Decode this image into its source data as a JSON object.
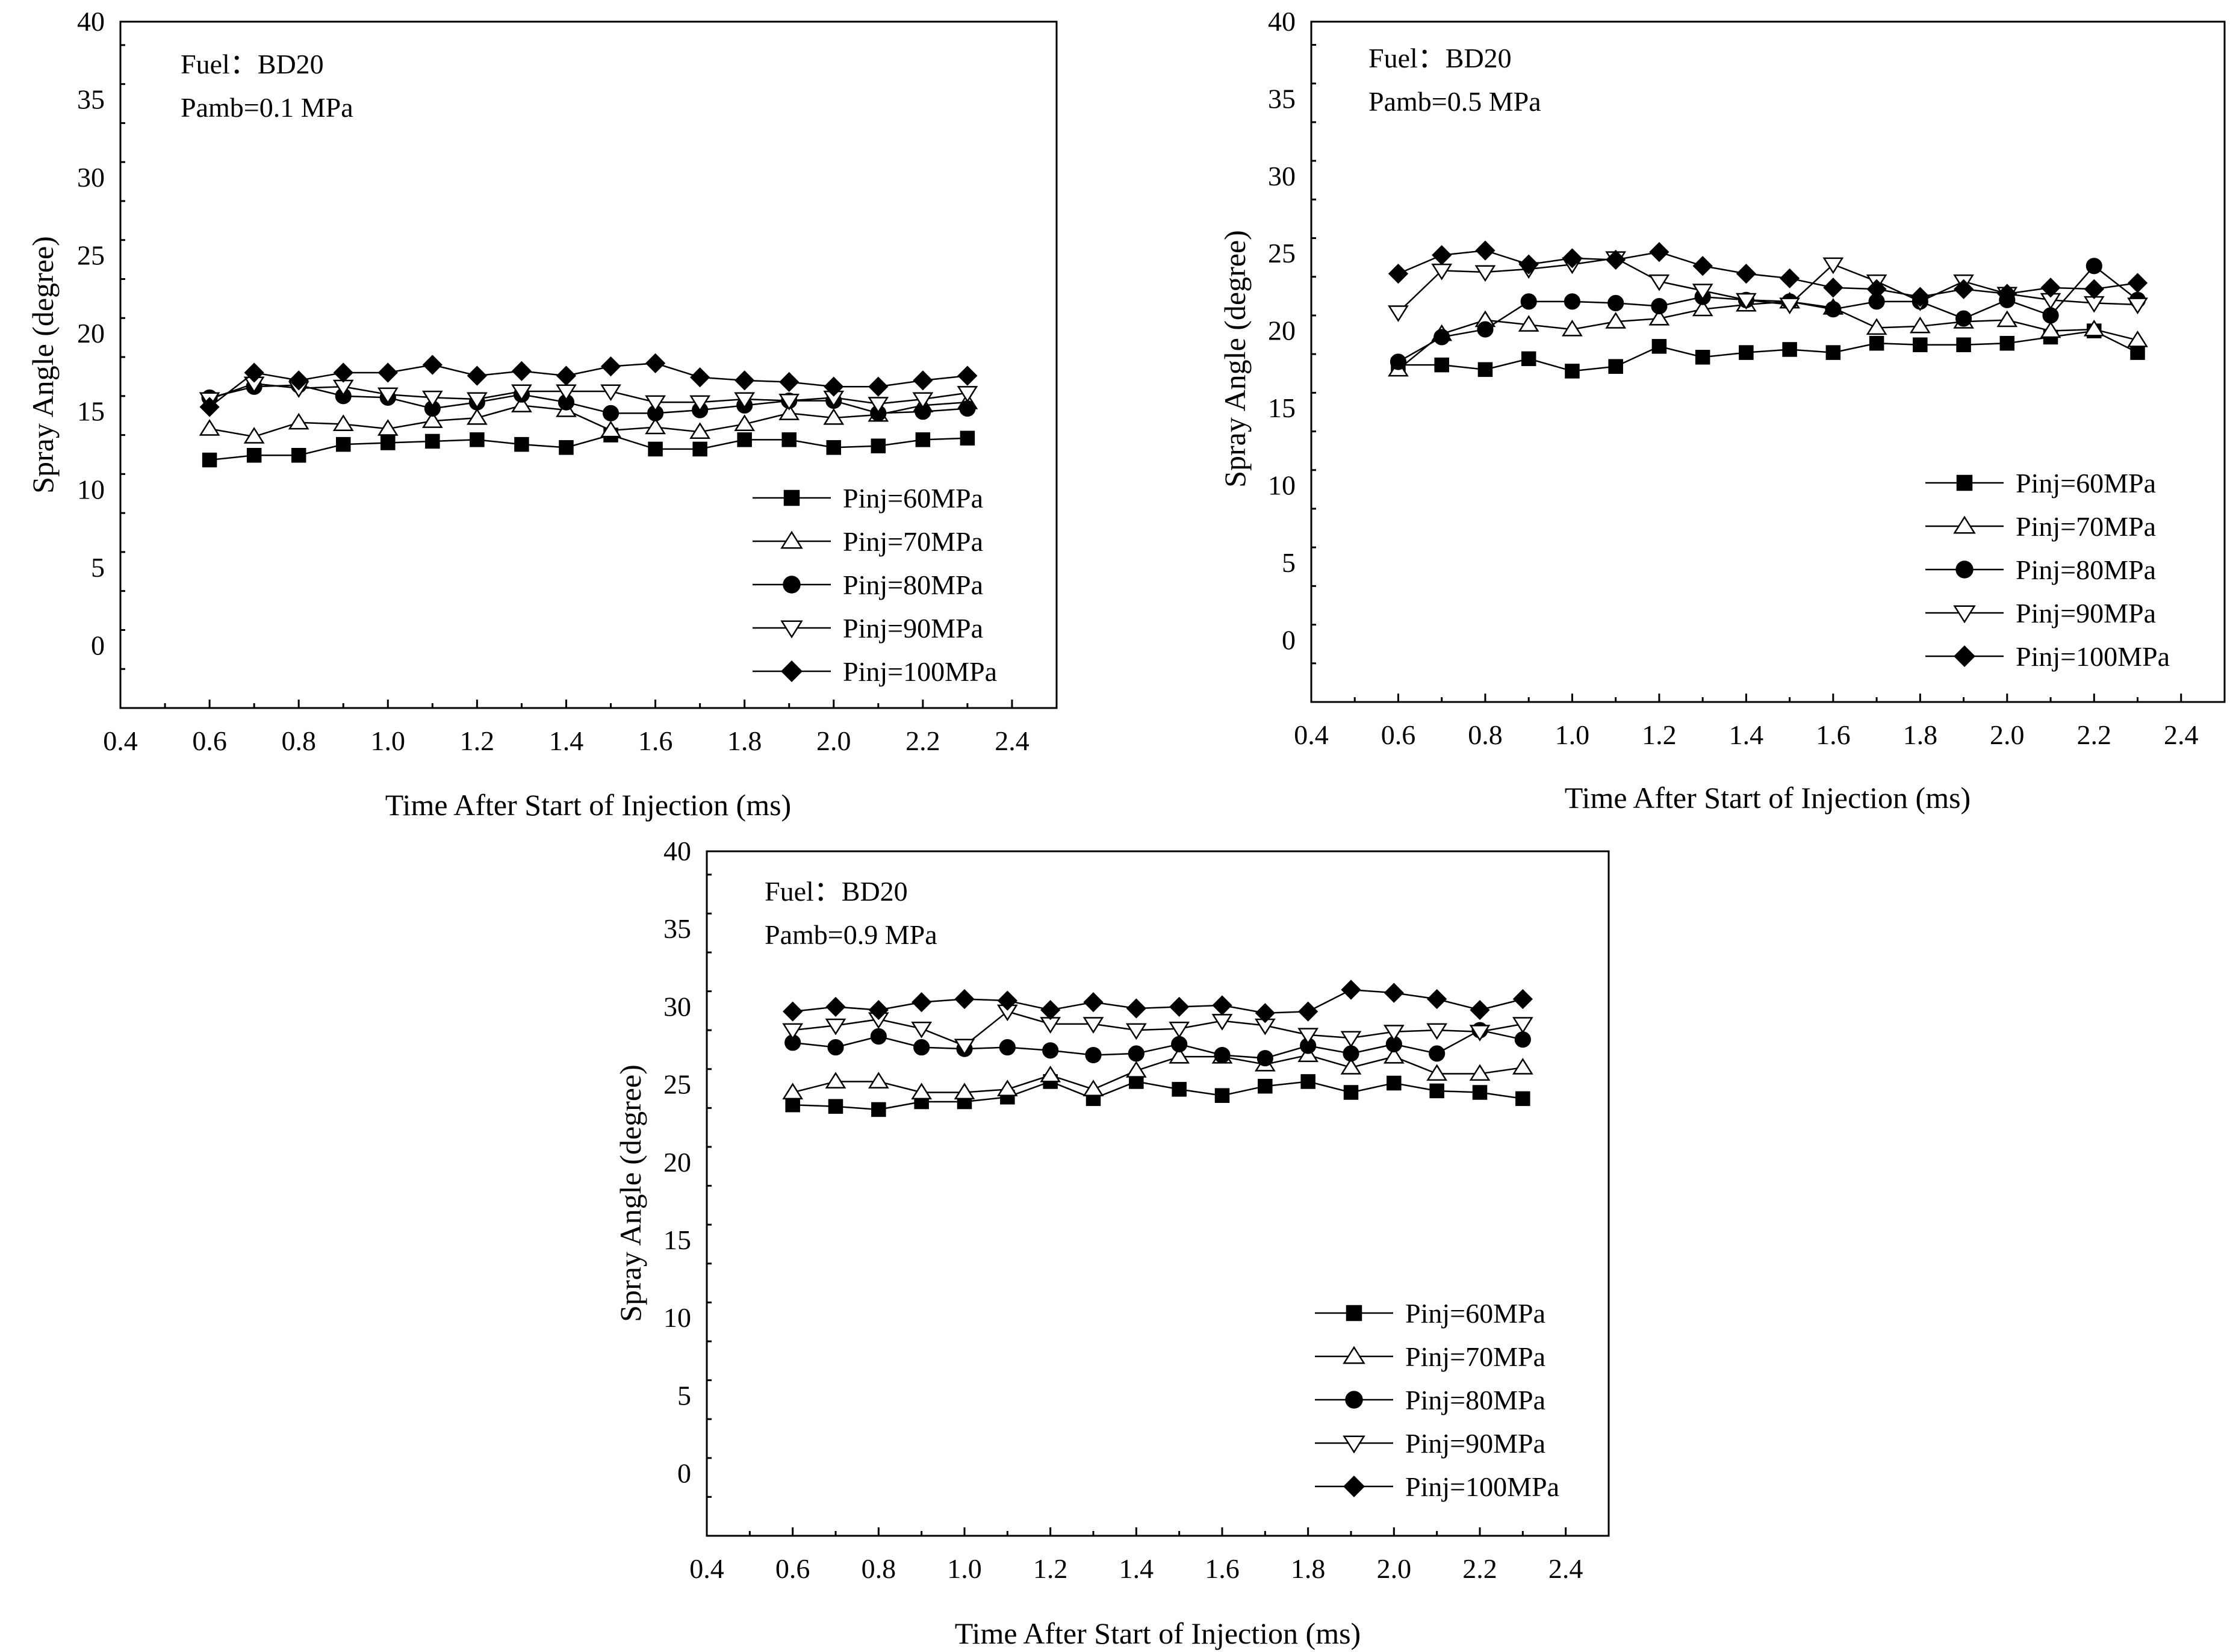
{
  "chart_data": [
    {
      "type": "line",
      "title": "",
      "annotation_lines": [
        "Fuel：BD20",
        "Pamb=0.1 MPa"
      ],
      "xlabel": "Time After Start of Injection (ms)",
      "ylabel": "Spray Angle (degree)",
      "xlim": [
        0.4,
        2.5
      ],
      "ylim": [
        -4,
        40
      ],
      "xticks": [
        "0.4",
        "0.6",
        "0.8",
        "1.0",
        "1.2",
        "1.4",
        "1.6",
        "1.8",
        "2.0",
        "2.2",
        "2.4"
      ],
      "yticks": [
        "0",
        "5",
        "10",
        "15",
        "20",
        "25",
        "30",
        "35",
        "40"
      ],
      "legend_position": "lower-right",
      "x": [
        0.6,
        0.7,
        0.8,
        0.9,
        1.0,
        1.1,
        1.2,
        1.3,
        1.4,
        1.5,
        1.6,
        1.7,
        1.8,
        1.9,
        2.0,
        2.1,
        2.2,
        2.3
      ],
      "series": [
        {
          "name": "Pinj=60MPa",
          "marker": "square",
          "values": [
            11.9,
            12.2,
            12.2,
            12.9,
            13.0,
            13.1,
            13.2,
            12.9,
            12.7,
            13.5,
            12.6,
            12.6,
            13.2,
            13.2,
            12.7,
            12.8,
            13.2,
            13.3
          ]
        },
        {
          "name": "Pinj=70MPa",
          "marker": "triangle-up-open",
          "values": [
            13.9,
            13.4,
            14.3,
            14.2,
            13.9,
            14.4,
            14.6,
            15.4,
            15.1,
            13.8,
            14.0,
            13.7,
            14.2,
            14.9,
            14.6,
            14.8,
            15.4,
            15.6
          ]
        },
        {
          "name": "Pinj=80MPa",
          "marker": "circle",
          "values": [
            15.9,
            16.6,
            16.7,
            16.0,
            15.9,
            15.2,
            15.6,
            16.1,
            15.6,
            14.9,
            14.9,
            15.1,
            15.4,
            15.7,
            15.7,
            14.9,
            15.0,
            15.2
          ]
        },
        {
          "name": "Pinj=90MPa",
          "marker": "triangle-down-open",
          "values": [
            15.8,
            16.8,
            16.5,
            16.6,
            16.1,
            15.9,
            15.8,
            16.3,
            16.3,
            16.3,
            15.6,
            15.6,
            15.8,
            15.7,
            15.9,
            15.5,
            15.8,
            16.2
          ]
        },
        {
          "name": "Pinj=100MPa",
          "marker": "diamond",
          "values": [
            15.3,
            17.5,
            17.0,
            17.5,
            17.5,
            18.0,
            17.3,
            17.6,
            17.3,
            17.9,
            18.1,
            17.2,
            17.0,
            16.9,
            16.6,
            16.6,
            17.0,
            17.3
          ]
        }
      ]
    },
    {
      "type": "line",
      "title": "",
      "annotation_lines": [
        "Fuel：BD20",
        "Pamb=0.5 MPa"
      ],
      "xlabel": "Time After Start of Injection (ms)",
      "ylabel": "Spray Angle (degree)",
      "xlim": [
        0.4,
        2.5
      ],
      "ylim": [
        -4,
        40
      ],
      "xticks": [
        "0.4",
        "0.6",
        "0.8",
        "1.0",
        "1.2",
        "1.4",
        "1.6",
        "1.8",
        "2.0",
        "2.2",
        "2.4"
      ],
      "yticks": [
        "0",
        "5",
        "10",
        "15",
        "20",
        "25",
        "30",
        "35",
        "40"
      ],
      "legend_position": "lower-right",
      "x": [
        0.6,
        0.7,
        0.8,
        0.9,
        1.0,
        1.1,
        1.2,
        1.3,
        1.4,
        1.5,
        1.6,
        1.7,
        1.8,
        1.9,
        2.0,
        2.1,
        2.2,
        2.3
      ],
      "series": [
        {
          "name": "Pinj=60MPa",
          "marker": "square",
          "values": [
            17.8,
            17.8,
            17.5,
            18.2,
            17.4,
            17.7,
            19.0,
            18.3,
            18.6,
            18.8,
            18.6,
            19.2,
            19.1,
            19.1,
            19.2,
            19.6,
            20.0,
            18.6
          ]
        },
        {
          "name": "Pinj=70MPa",
          "marker": "triangle-up-open",
          "values": [
            17.5,
            19.8,
            20.7,
            20.4,
            20.1,
            20.6,
            20.8,
            21.4,
            21.7,
            21.9,
            21.5,
            20.2,
            20.3,
            20.6,
            20.7,
            20.0,
            20.1,
            19.4
          ]
        },
        {
          "name": "Pinj=80MPa",
          "marker": "circle",
          "values": [
            18.0,
            19.6,
            20.1,
            21.9,
            21.9,
            21.8,
            21.6,
            22.2,
            22.0,
            21.9,
            21.4,
            21.9,
            21.9,
            20.8,
            22.0,
            21.0,
            24.2,
            22.0
          ]
        },
        {
          "name": "Pinj=90MPa",
          "marker": "triangle-down-open",
          "values": [
            21.2,
            23.9,
            23.8,
            24.0,
            24.3,
            24.7,
            23.2,
            22.6,
            22.0,
            21.7,
            24.3,
            23.2,
            21.9,
            23.2,
            22.4,
            22.0,
            21.8,
            21.7
          ]
        },
        {
          "name": "Pinj=100MPa",
          "marker": "diamond",
          "values": [
            23.7,
            24.9,
            25.2,
            24.3,
            24.7,
            24.6,
            25.1,
            24.2,
            23.7,
            23.4,
            22.8,
            22.7,
            22.2,
            22.7,
            22.4,
            22.8,
            22.7,
            23.1
          ]
        }
      ]
    },
    {
      "type": "line",
      "title": "",
      "annotation_lines": [
        "Fuel：BD20",
        "Pamb=0.9 MPa"
      ],
      "xlabel": "Time After Start of Injection (ms)",
      "ylabel": "Spray Angle (degree)",
      "xlim": [
        0.4,
        2.5
      ],
      "ylim": [
        -4,
        40
      ],
      "xticks": [
        "0.4",
        "0.6",
        "0.8",
        "1.0",
        "1.2",
        "1.4",
        "1.6",
        "1.8",
        "2.0",
        "2.2",
        "2.4"
      ],
      "yticks": [
        "0",
        "5",
        "10",
        "15",
        "20",
        "25",
        "30",
        "35",
        "40"
      ],
      "legend_position": "lower-right",
      "x": [
        0.6,
        0.7,
        0.8,
        0.9,
        1.0,
        1.1,
        1.2,
        1.3,
        1.4,
        1.5,
        1.6,
        1.7,
        1.8,
        1.9,
        2.0,
        2.1,
        2.2,
        2.3
      ],
      "series": [
        {
          "name": "Pinj=60MPa",
          "marker": "square",
          "values": [
            23.7,
            23.6,
            23.4,
            23.9,
            23.9,
            24.2,
            25.2,
            24.1,
            25.2,
            24.7,
            24.3,
            24.9,
            25.2,
            24.5,
            25.1,
            24.6,
            24.5,
            24.1
          ]
        },
        {
          "name": "Pinj=70MPa",
          "marker": "triangle-up-open",
          "values": [
            24.5,
            25.2,
            25.2,
            24.5,
            24.5,
            24.7,
            25.6,
            24.7,
            25.9,
            26.8,
            26.8,
            26.3,
            26.9,
            26.1,
            26.8,
            25.7,
            25.7,
            26.1
          ]
        },
        {
          "name": "Pinj=80MPa",
          "marker": "circle",
          "values": [
            27.7,
            27.4,
            28.1,
            27.4,
            27.3,
            27.4,
            27.2,
            26.9,
            27.0,
            27.6,
            26.9,
            26.7,
            27.5,
            27.0,
            27.6,
            27.0,
            28.5,
            27.9
          ]
        },
        {
          "name": "Pinj=90MPa",
          "marker": "triangle-down-open",
          "values": [
            28.5,
            28.8,
            29.2,
            28.6,
            27.5,
            29.7,
            28.9,
            28.9,
            28.5,
            28.6,
            29.1,
            28.8,
            28.2,
            28.0,
            28.4,
            28.5,
            28.4,
            28.9
          ]
        },
        {
          "name": "Pinj=100MPa",
          "marker": "diamond",
          "values": [
            29.7,
            30.0,
            29.8,
            30.3,
            30.5,
            30.4,
            29.8,
            30.3,
            29.9,
            30.0,
            30.1,
            29.6,
            29.7,
            31.1,
            30.9,
            30.5,
            29.8,
            30.5
          ]
        }
      ]
    }
  ]
}
